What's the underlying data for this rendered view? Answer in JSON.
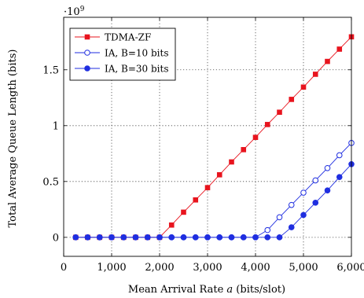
{
  "chart_data": {
    "type": "line",
    "title": "",
    "xlabel": "Mean Arrival Rate a (bits/slot)",
    "xlabel_parts": {
      "before": "Mean Arrival Rate ",
      "var": "a",
      "after": " (bits/slot)"
    },
    "ylabel": "Total Average Queue Length (bits)",
    "y_multiplier_label": "·10",
    "y_multiplier_exp": "9",
    "xlim": [
      0,
      6000
    ],
    "ylim": [
      -0.17,
      1.97
    ],
    "x_ticks": [
      0,
      1000,
      2000,
      3000,
      4000,
      5000,
      6000
    ],
    "x_tick_labels": [
      "0",
      "1,000",
      "2,000",
      "3,000",
      "4,000",
      "5,000",
      "6,000"
    ],
    "y_ticks": [
      0,
      0.5,
      1,
      1.5
    ],
    "y_tick_labels": [
      "0",
      "0.5",
      "1",
      "1.5"
    ],
    "grid": true,
    "legend_position": "top-left",
    "x": [
      250,
      500,
      750,
      1000,
      1250,
      1500,
      1750,
      2000,
      2250,
      2500,
      2750,
      3000,
      3250,
      3500,
      3750,
      4000,
      4250,
      4500,
      4750,
      5000,
      5250,
      5500,
      5750,
      6000
    ],
    "series": [
      {
        "name": "TDMA-ZF",
        "color": "#e8141e",
        "marker": "square",
        "values": [
          0,
          0,
          0,
          0,
          0,
          0,
          0,
          0,
          0.11,
          0.225,
          0.335,
          0.445,
          0.56,
          0.675,
          0.785,
          0.895,
          1.01,
          1.12,
          1.235,
          1.345,
          1.46,
          1.575,
          1.685,
          1.795
        ]
      },
      {
        "name": "IA, B=10 bits",
        "color": "#1f2ee0",
        "marker": "circle-open",
        "values": [
          0,
          0,
          0,
          0,
          0,
          0,
          0,
          0,
          0,
          0,
          0,
          0,
          0,
          0,
          0,
          0,
          0.065,
          0.18,
          0.29,
          0.4,
          0.51,
          0.62,
          0.735,
          0.845
        ]
      },
      {
        "name": "IA, B=30 bits",
        "color": "#1f2ee0",
        "marker": "circle-filled",
        "values": [
          0,
          0,
          0,
          0,
          0,
          0,
          0,
          0,
          0,
          0,
          0,
          0,
          0,
          0,
          0,
          0,
          0,
          0,
          0.09,
          0.2,
          0.31,
          0.42,
          0.54,
          0.655
        ]
      }
    ]
  }
}
